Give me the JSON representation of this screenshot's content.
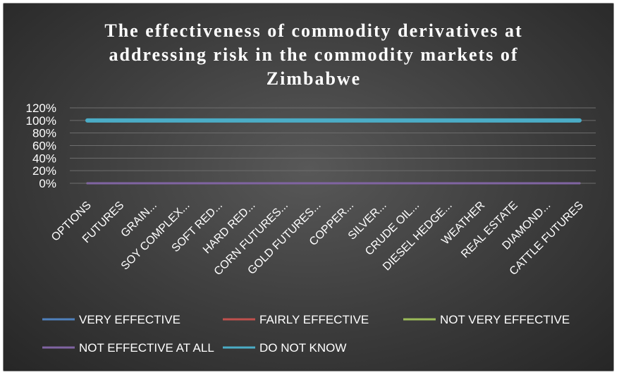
{
  "chart_data": {
    "type": "line",
    "title": "The effectiveness of commodity derivatives at\naddressing risk in the commodity markets of\nZimbabwe",
    "categories": [
      "OPTIONS",
      "FUTURES",
      "GRAIN...",
      "SOY COMPLEX...",
      "SOFT RED...",
      "HARD RED...",
      "CORN FUTURES...",
      "GOLD FUTURES...",
      "COPPER...",
      "SILVER...",
      "CRUDE OIL...",
      "DIESEL HEDGE...",
      "WEATHER",
      "REAL ESTATE",
      "DIAMOND...",
      "CATTLE FUTURES"
    ],
    "ylim": [
      0,
      1.2
    ],
    "yticks": [
      "0%",
      "20%",
      "40%",
      "60%",
      "80%",
      "100%",
      "120%"
    ],
    "grid": true,
    "legend_position": "bottom",
    "series": [
      {
        "name": "VERY EFFECTIVE",
        "color": "#4f81bd",
        "values": [
          0,
          0,
          0,
          0,
          0,
          0,
          0,
          0,
          0,
          0,
          0,
          0,
          0,
          0,
          0,
          0
        ]
      },
      {
        "name": "FAIRLY EFFECTIVE",
        "color": "#c0504d",
        "values": [
          0,
          0,
          0,
          0,
          0,
          0,
          0,
          0,
          0,
          0,
          0,
          0,
          0,
          0,
          0,
          0
        ]
      },
      {
        "name": "NOT VERY EFFECTIVE",
        "color": "#9bbb59",
        "values": [
          0,
          0,
          0,
          0,
          0,
          0,
          0,
          0,
          0,
          0,
          0,
          0,
          0,
          0,
          0,
          0
        ]
      },
      {
        "name": "NOT EFFECTIVE AT ALL",
        "color": "#8064a2",
        "values": [
          0,
          0,
          0,
          0,
          0,
          0,
          0,
          0,
          0,
          0,
          0,
          0,
          0,
          0,
          0,
          0
        ]
      },
      {
        "name": "DO NOT KNOW",
        "color": "#4bacc6",
        "values": [
          1,
          1,
          1,
          1,
          1,
          1,
          1,
          1,
          1,
          1,
          1,
          1,
          1,
          1,
          1,
          1
        ]
      }
    ]
  }
}
